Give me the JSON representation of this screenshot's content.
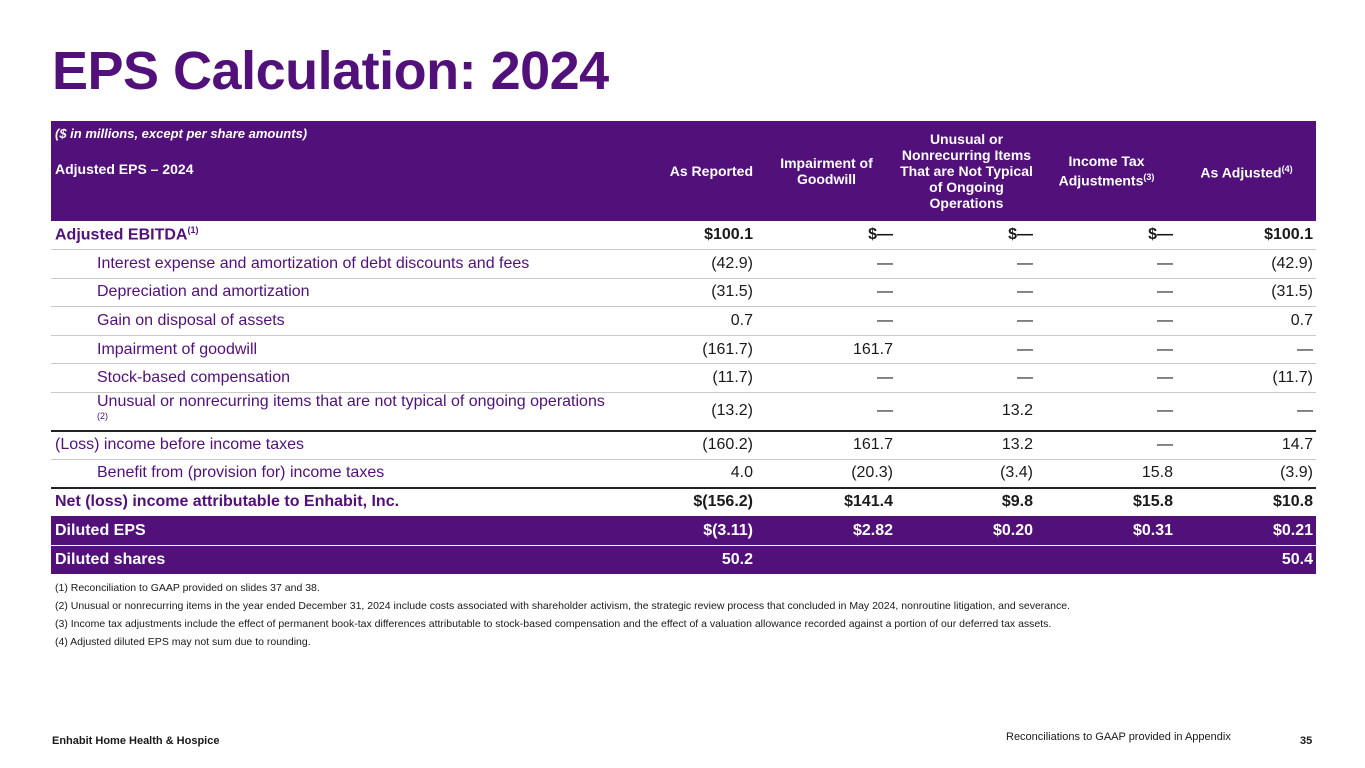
{
  "title": "EPS Calculation: 2024",
  "colors": {
    "brand_purple": "#51107a",
    "text": "#1a1a1a",
    "rule": "#c9c9c9"
  },
  "table": {
    "units_note": "($ in millions, except per share amounts)",
    "section_title": "Adjusted EPS – 2024",
    "headers": {
      "as_reported": "As Reported",
      "impairment": "Impairment of Goodwill",
      "unusual": "Unusual or Nonrecurring Items That are Not Typical of Ongoing Operations",
      "income_tax": "Income Tax Adjustments",
      "income_tax_sup": "(3)",
      "as_adjusted": "As Adjusted",
      "as_adjusted_sup": "(4)"
    },
    "rows": [
      {
        "label": "Adjusted EBITDA",
        "sup": "(1)",
        "values": [
          "$100.1",
          "$—",
          "$—",
          "$—",
          "$100.1"
        ]
      },
      {
        "label": "Interest expense and amortization of debt discounts and fees",
        "values": [
          "(42.9)",
          "—",
          "—",
          "—",
          "(42.9)"
        ]
      },
      {
        "label": "Depreciation and amortization",
        "values": [
          "(31.5)",
          "—",
          "—",
          "—",
          "(31.5)"
        ]
      },
      {
        "label": "Gain on disposal of assets",
        "values": [
          "0.7",
          "—",
          "—",
          "—",
          "0.7"
        ]
      },
      {
        "label": "Impairment of goodwill",
        "values": [
          "(161.7)",
          "161.7",
          "—",
          "—",
          "—"
        ]
      },
      {
        "label": "Stock-based compensation",
        "values": [
          "(11.7)",
          "—",
          "—",
          "—",
          "(11.7)"
        ]
      },
      {
        "label": "Unusual or nonrecurring items that are not typical of ongoing operations",
        "sup": "(2)",
        "values": [
          "(13.2)",
          "—",
          "13.2",
          "—",
          "—"
        ]
      },
      {
        "label": "(Loss) income before income taxes",
        "values": [
          "(160.2)",
          "161.7",
          "13.2",
          "—",
          "14.7"
        ]
      },
      {
        "label": "Benefit from (provision for) income taxes",
        "values": [
          "4.0",
          "(20.3)",
          "(3.4)",
          "15.8",
          "(3.9)"
        ]
      },
      {
        "label": "Net (loss) income attributable to Enhabit, Inc.",
        "values": [
          "$(156.2)",
          "$141.4",
          "$9.8",
          "$15.8",
          "$10.8"
        ]
      },
      {
        "label": "Diluted EPS",
        "values": [
          "$(3.11)",
          "$2.82",
          "$0.20",
          "$0.31",
          "$0.21"
        ]
      },
      {
        "label": "Diluted shares",
        "values": [
          "50.2",
          "",
          "",
          "",
          "50.4"
        ]
      }
    ]
  },
  "footnotes": [
    "(1) Reconciliation to GAAP provided on slides 37 and 38.",
    "(2) Unusual or nonrecurring items in the year ended December 31, 2024 include costs associated with shareholder activism, the strategic review process that concluded in May 2024, nonroutine litigation, and severance.",
    "(3) Income tax adjustments include the effect of permanent book-tax differences attributable to stock-based compensation and the effect of a valuation allowance recorded against a portion of our deferred tax assets.",
    "(4) Adjusted diluted EPS may not sum due to rounding."
  ],
  "footer": {
    "company": "Enhabit Home Health & Hospice",
    "note": "Reconciliations to GAAP provided in Appendix",
    "page": "35"
  }
}
